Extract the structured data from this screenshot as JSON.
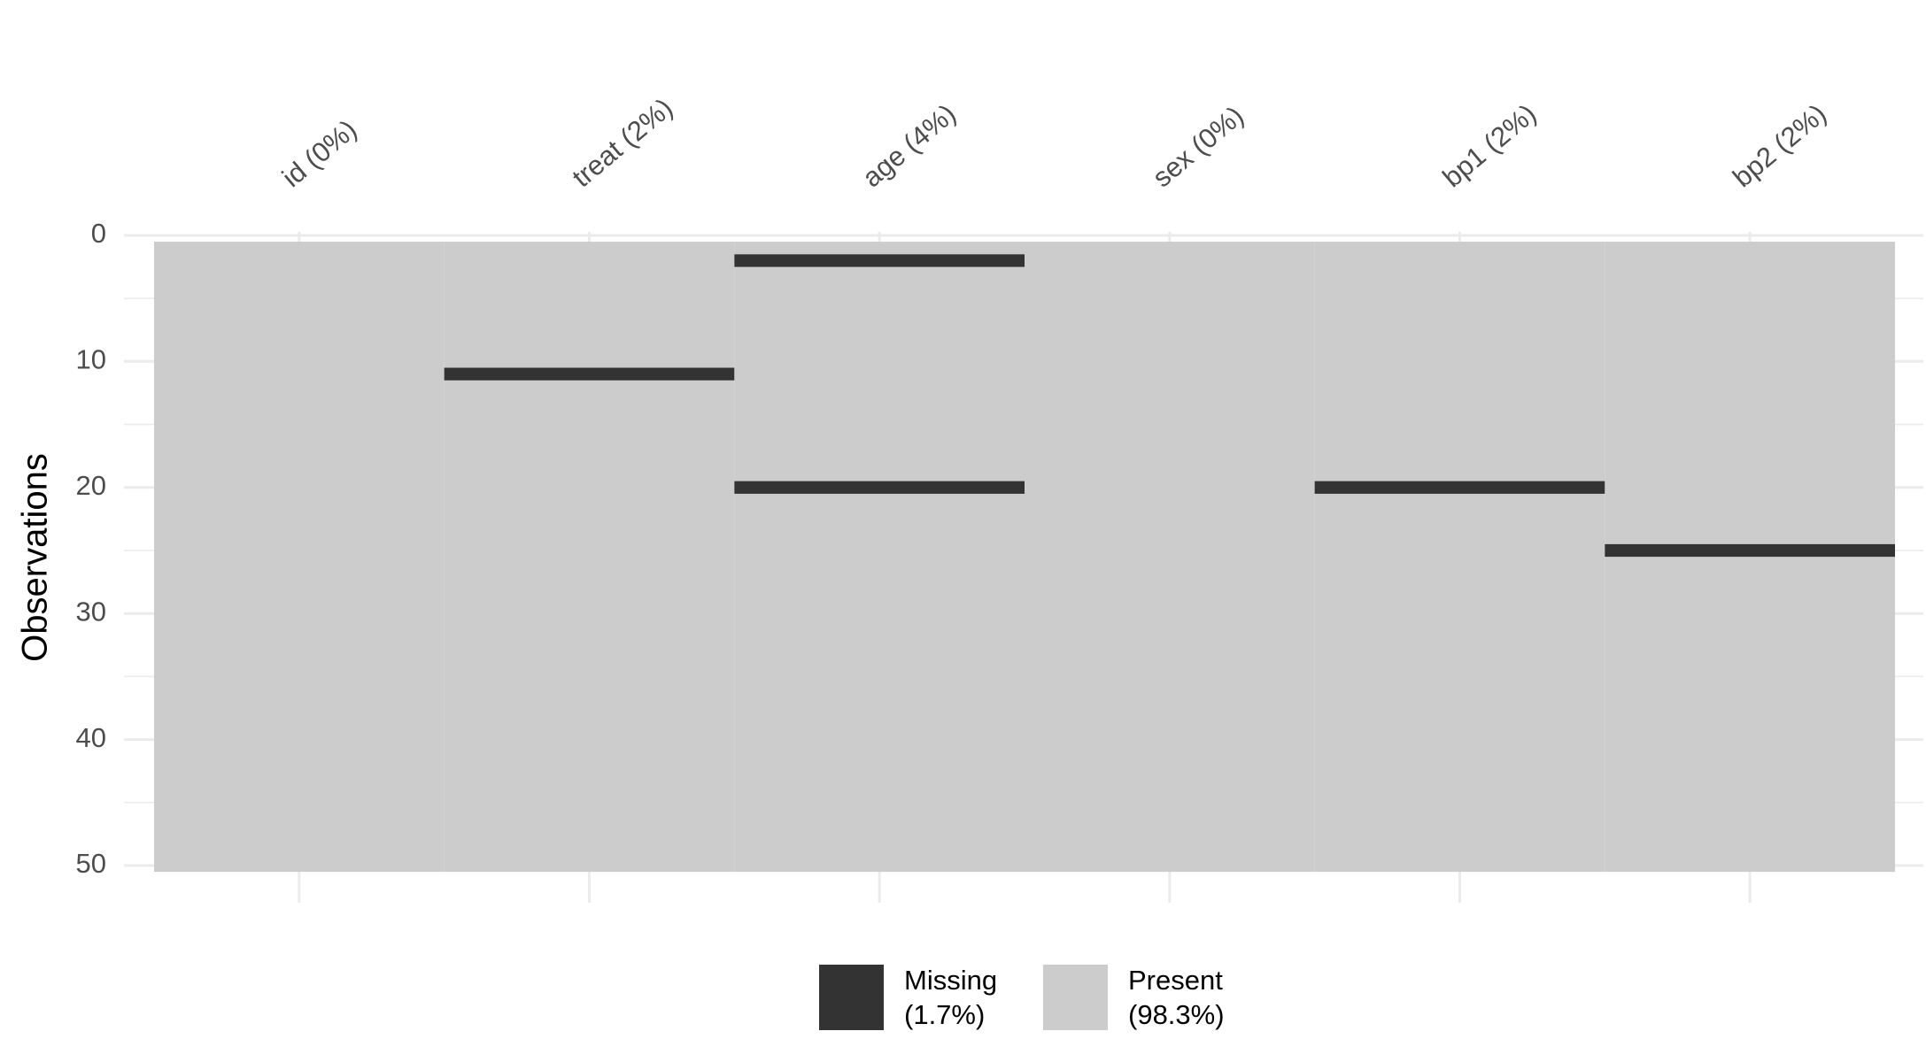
{
  "chart_data": {
    "type": "missingness",
    "y_label": "Observations",
    "columns": [
      "id (0%)",
      "treat (2%)",
      "age (4%)",
      "sex (0%)",
      "bp1 (2%)",
      "bp2 (2%)"
    ],
    "missing_rows": [
      [],
      [
        11
      ],
      [
        2,
        20
      ],
      [],
      [
        20
      ],
      [
        25
      ]
    ],
    "ylim": [
      0,
      50
    ],
    "yticks": [
      0,
      10,
      20,
      30,
      40,
      50
    ],
    "reversed_y": true,
    "grid": true,
    "legend": [
      {
        "name": "Missing",
        "detail": "(1.7%)",
        "color": "#333333"
      },
      {
        "name": "Present",
        "detail": "(98.3%)",
        "color": "#cccccc"
      }
    ]
  }
}
